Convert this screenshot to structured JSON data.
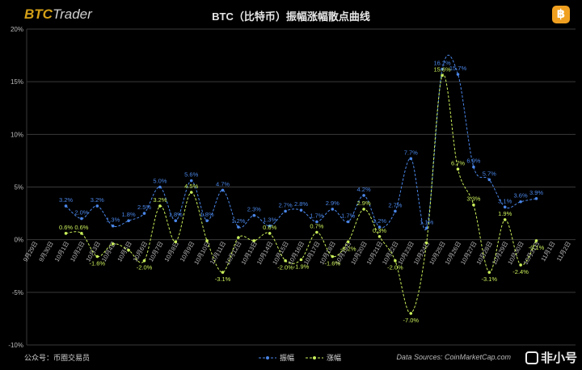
{
  "brand": {
    "part1": "BTC",
    "part2": "Trader"
  },
  "coin_glyph": "฿",
  "footer": {
    "left": "公众号：币圈交易员",
    "right": "Data Sources: CoinMarketCap.com"
  },
  "watermark": "非小号",
  "colors": {
    "amplitude": "#4a86e8",
    "change": "#c9ef5a",
    "axis_text": "#bbbbbb",
    "grid": "#3a3a3a"
  },
  "chart_data": {
    "type": "line",
    "title": "BTC（比特币）振幅涨幅散点曲线",
    "ylim": [
      -10,
      20
    ],
    "y_ticks": [
      "-10%",
      "-5%",
      "0%",
      "5%",
      "10%",
      "15%",
      "20%"
    ],
    "categories": [
      "9月29日",
      "9月30日",
      "10月1日",
      "10月2日",
      "10月3日",
      "10月4日",
      "10月5日",
      "10月6日",
      "10月7日",
      "10月8日",
      "10月9日",
      "10月10日",
      "10月11日",
      "10月12日",
      "10月13日",
      "10月14日",
      "10月15日",
      "10月16日",
      "10月17日",
      "10月18日",
      "10月19日",
      "10月20日",
      "10月21日",
      "10月22日",
      "10月23日",
      "10月24日",
      "10月25日",
      "10月26日",
      "10月27日",
      "10月28日",
      "10月29日",
      "10月30日",
      "10月31日",
      "11月1日",
      "11月2日"
    ],
    "series": [
      {
        "name": "振幅",
        "values": [
          null,
          null,
          3.2,
          2.0,
          3.2,
          1.3,
          1.8,
          2.5,
          5.0,
          1.8,
          5.6,
          1.8,
          4.7,
          1.2,
          2.3,
          1.3,
          2.7,
          2.8,
          1.7,
          2.9,
          1.7,
          4.2,
          1.2,
          2.7,
          7.7,
          1.1,
          16.2,
          15.7,
          6.9,
          5.7,
          3.1,
          3.6,
          3.9,
          null,
          null
        ],
        "labels": [
          "",
          "",
          "3.2%",
          "2.0%",
          "3.2%",
          "1.3%",
          "1.8%",
          "2.5%",
          "5.0%",
          "1.8%",
          "5.6%",
          "1.8%",
          "4.7%",
          "1.2%",
          "2.3%",
          "1.3%",
          "2.7%",
          "2.8%",
          "1.7%",
          "2.9%",
          "1.7%",
          "4.2%",
          "1.2%",
          "2.7%",
          "7.7%",
          "1.1%",
          "16.2%",
          "15.7%",
          "6.9%",
          "5.7%",
          "3.1%",
          "3.6%",
          "3.9%",
          "",
          ""
        ]
      },
      {
        "name": "涨幅",
        "values": [
          null,
          null,
          0.6,
          0.6,
          -1.6,
          -0.4,
          -1.0,
          -2.0,
          3.2,
          -0.2,
          4.5,
          -0.1,
          -3.1,
          0.2,
          -0.1,
          0.6,
          -2.0,
          -1.9,
          0.7,
          -1.6,
          -0.2,
          2.9,
          0.3,
          -2.0,
          -7.0,
          -0.3,
          15.6,
          6.7,
          3.3,
          -3.1,
          1.9,
          -2.4,
          -0.1,
          null,
          null
        ],
        "labels": [
          "",
          "",
          "0.6%",
          "0.6%",
          "-1.6%",
          "",
          "",
          "-2.0%",
          "3.2%",
          "",
          "4.5%",
          "",
          "-3.1%",
          "",
          "",
          "0.6%",
          "-2.0%",
          "-1.9%",
          "0.7%",
          "-1.6%",
          "-0.2%",
          "2.9%",
          "0.3%",
          "-2.0%",
          "-7.0%",
          "",
          "15.6%",
          "6.7%",
          "3.3%",
          "-3.1%",
          "1.9%",
          "-2.4%",
          "-0.1%",
          "",
          ""
        ]
      }
    ]
  }
}
